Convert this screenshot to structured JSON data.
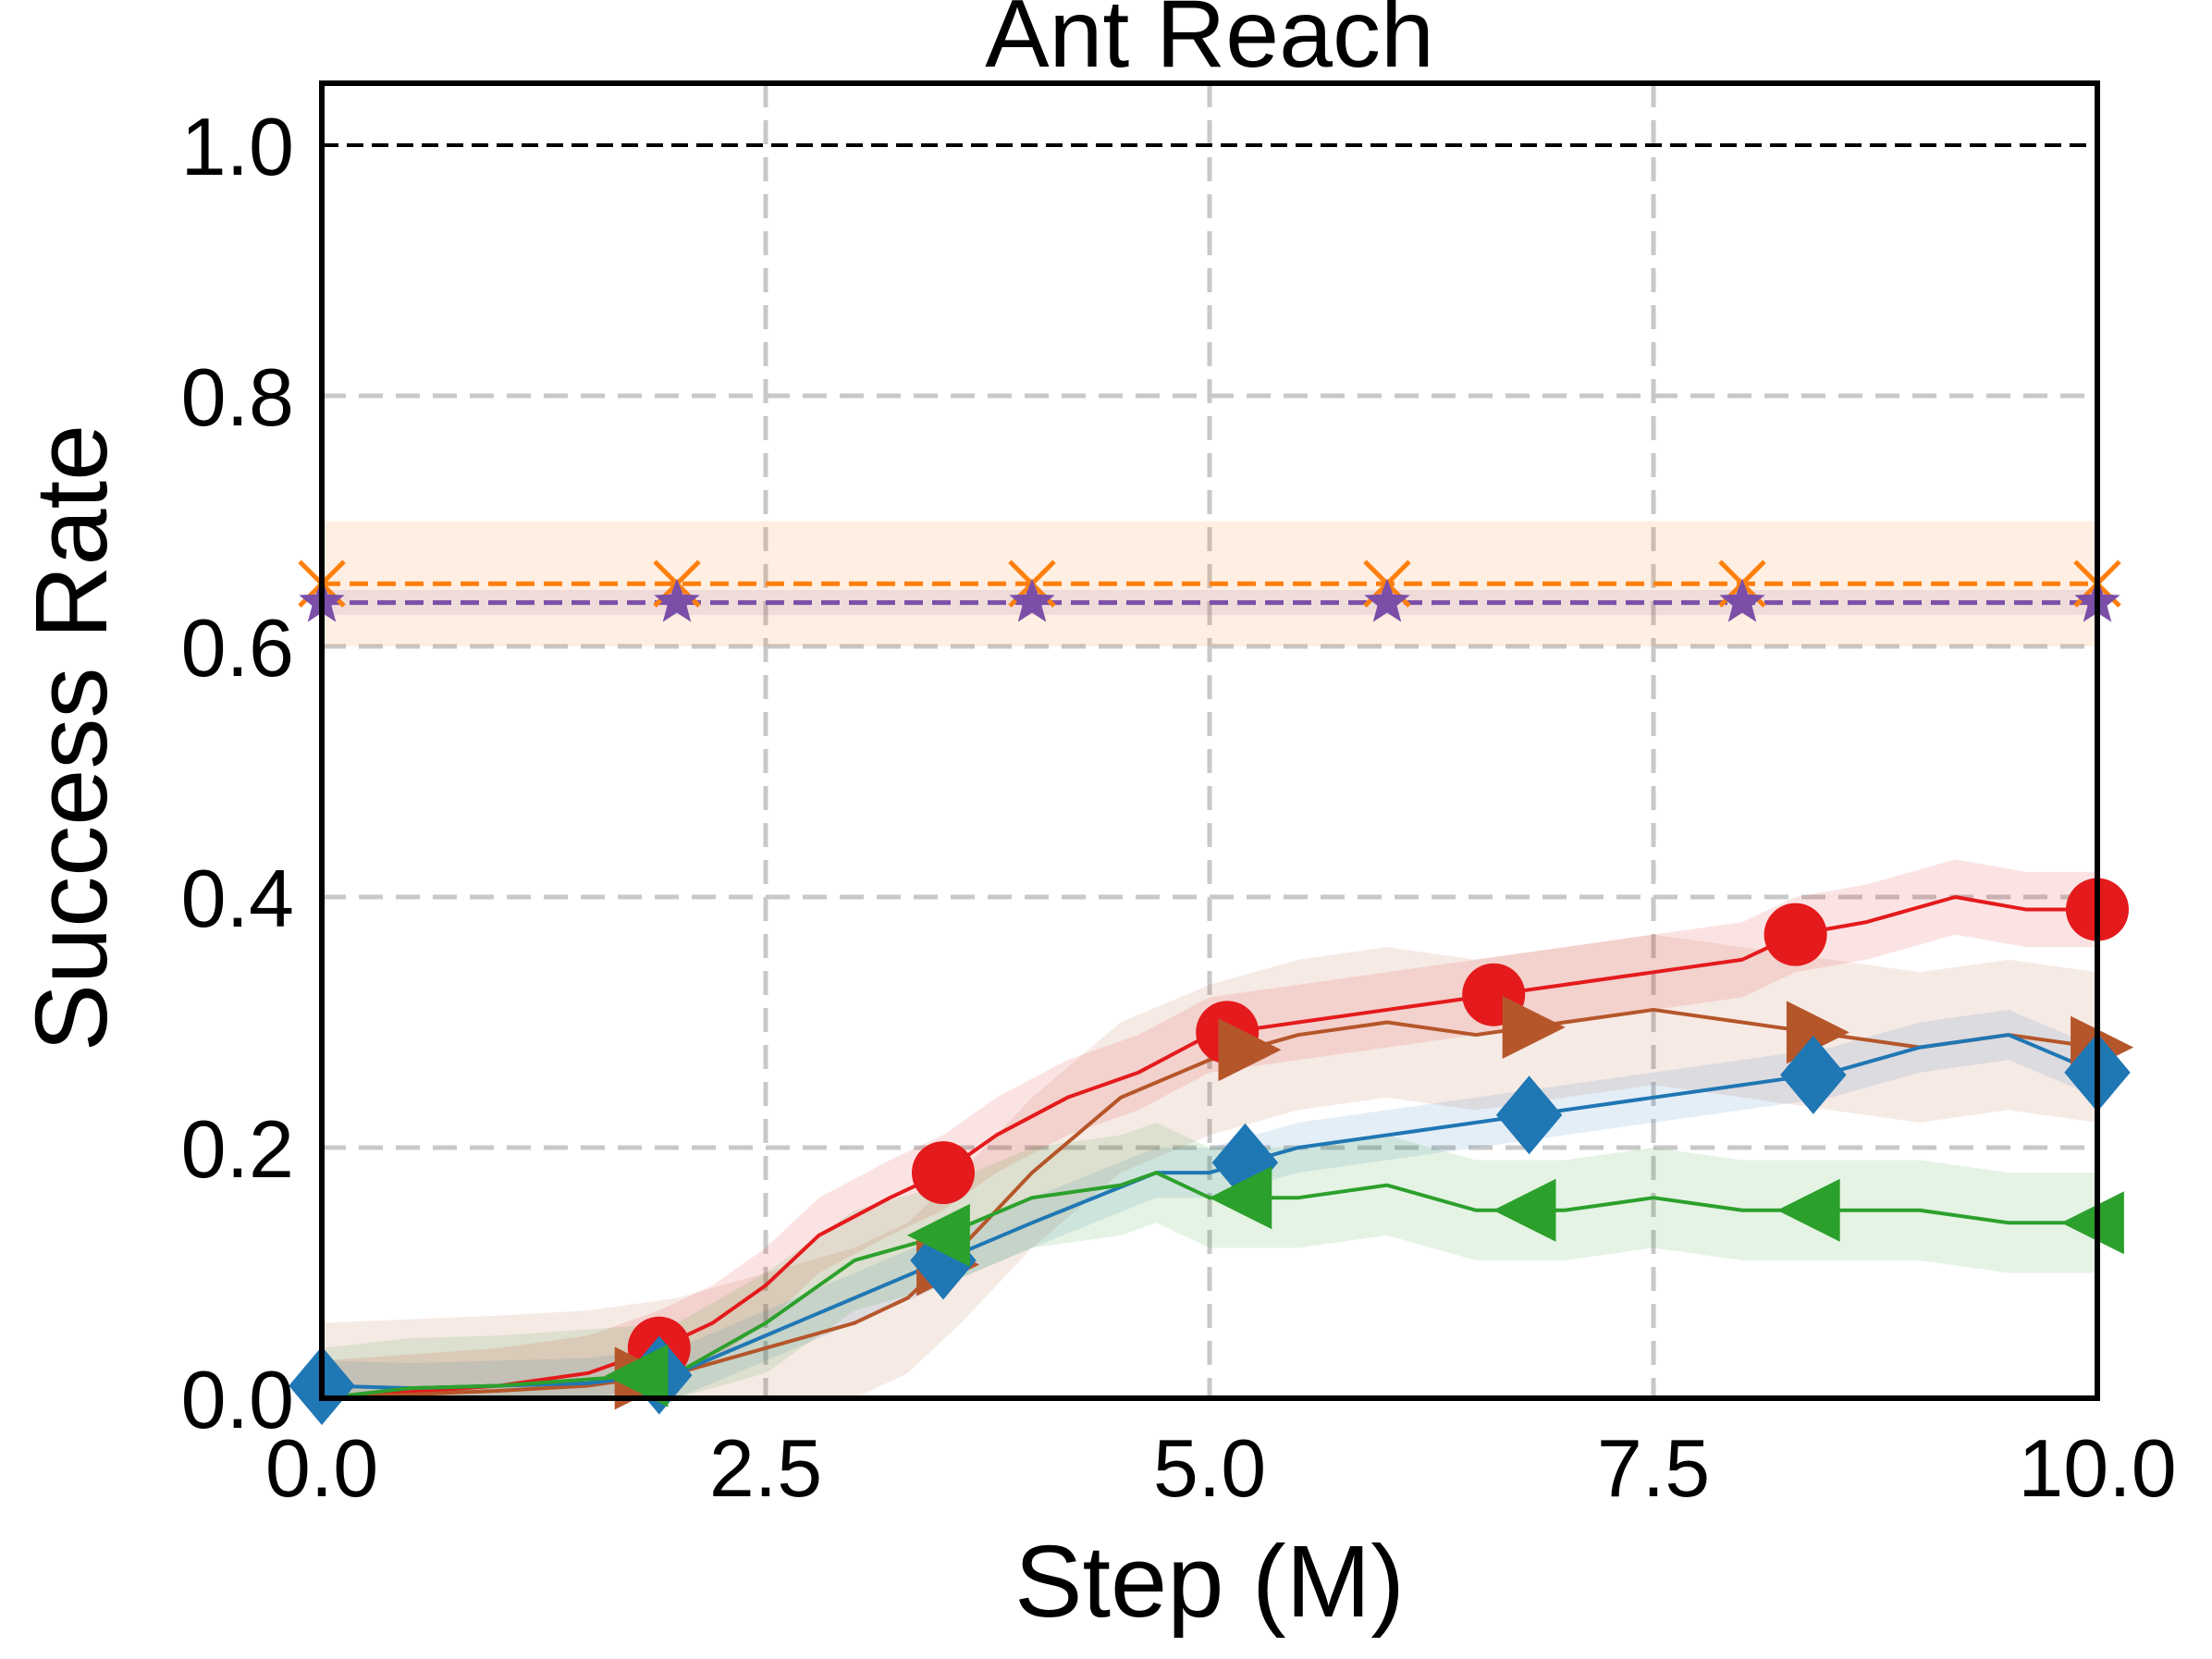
{
  "chart_data": {
    "type": "line",
    "title": "Ant Reach",
    "xlabel": "Step (M)",
    "ylabel": "Success Rate",
    "xlim": [
      0,
      10
    ],
    "ylim": [
      0,
      1.05
    ],
    "xticks": [
      0.0,
      2.5,
      5.0,
      7.5,
      10.0
    ],
    "xtick_labels": [
      "0.0",
      "2.5",
      "5.0",
      "7.5",
      "10.0"
    ],
    "yticks": [
      0.0,
      0.2,
      0.4,
      0.6,
      0.8,
      1.0
    ],
    "ytick_labels": [
      "0.0",
      "0.2",
      "0.4",
      "0.6",
      "0.8",
      "1.0"
    ],
    "grid": true,
    "reference_line": {
      "y": 1.0,
      "color": "#000000",
      "style": "dashed"
    },
    "colors": {
      "red": "#e41a1c",
      "brown": "#b5562a",
      "blue": "#1f77b4",
      "green": "#2ca02c",
      "orange": "#ff7f0e",
      "purple": "#7b4fa8"
    },
    "series": [
      {
        "name": "red",
        "color": "#e41a1c",
        "marker": "circle",
        "x": [
          0.0,
          0.5,
          1.0,
          1.5,
          1.9,
          2.2,
          2.5,
          2.8,
          3.2,
          3.5,
          3.8,
          4.2,
          4.6,
          5.0,
          5.5,
          6.0,
          6.5,
          7.0,
          7.5,
          8.0,
          8.3,
          8.7,
          9.2,
          9.6,
          10.0
        ],
        "y": [
          0.0,
          0.005,
          0.01,
          0.02,
          0.04,
          0.06,
          0.09,
          0.13,
          0.16,
          0.18,
          0.21,
          0.24,
          0.26,
          0.29,
          0.3,
          0.31,
          0.32,
          0.33,
          0.34,
          0.35,
          0.37,
          0.38,
          0.4,
          0.39,
          0.39
        ],
        "band": 0.03,
        "marker_x": [
          1.9,
          3.5,
          5.1,
          6.6,
          8.3,
          10.0
        ]
      },
      {
        "name": "brown",
        "color": "#b5562a",
        "marker": "triangle-right",
        "x": [
          0.0,
          0.5,
          1.0,
          1.5,
          2.0,
          2.5,
          3.0,
          3.3,
          3.6,
          4.0,
          4.5,
          5.0,
          5.5,
          6.0,
          6.5,
          7.0,
          7.5,
          8.0,
          8.5,
          9.0,
          9.5,
          10.0
        ],
        "y": [
          0.0,
          0.003,
          0.006,
          0.01,
          0.02,
          0.04,
          0.06,
          0.08,
          0.12,
          0.18,
          0.24,
          0.27,
          0.29,
          0.3,
          0.29,
          0.3,
          0.31,
          0.3,
          0.29,
          0.28,
          0.29,
          0.28
        ],
        "band": 0.06,
        "marker_x": [
          1.8,
          3.5,
          5.2,
          6.8,
          8.4,
          10.0
        ]
      },
      {
        "name": "blue",
        "color": "#1f77b4",
        "marker": "diamond",
        "x": [
          0.0,
          0.5,
          1.0,
          1.5,
          2.0,
          2.5,
          3.0,
          3.5,
          4.0,
          4.7,
          5.0,
          5.5,
          6.0,
          6.5,
          7.0,
          7.5,
          8.0,
          8.5,
          9.0,
          9.5,
          10.0
        ],
        "y": [
          0.01,
          0.008,
          0.01,
          0.012,
          0.02,
          0.05,
          0.08,
          0.11,
          0.14,
          0.18,
          0.18,
          0.2,
          0.21,
          0.22,
          0.23,
          0.24,
          0.25,
          0.26,
          0.28,
          0.29,
          0.26
        ],
        "band": 0.02,
        "marker_x": [
          0.0,
          1.9,
          3.5,
          5.2,
          6.8,
          8.4,
          10.0
        ]
      },
      {
        "name": "green",
        "color": "#2ca02c",
        "marker": "triangle-left",
        "x": [
          0.0,
          0.5,
          1.0,
          1.5,
          2.0,
          2.5,
          3.0,
          3.5,
          4.0,
          4.5,
          4.7,
          5.0,
          5.5,
          6.0,
          6.5,
          7.0,
          7.5,
          8.0,
          8.5,
          9.0,
          9.5,
          10.0
        ],
        "y": [
          0.0,
          0.008,
          0.01,
          0.015,
          0.02,
          0.06,
          0.11,
          0.13,
          0.16,
          0.17,
          0.18,
          0.16,
          0.16,
          0.17,
          0.15,
          0.15,
          0.16,
          0.15,
          0.15,
          0.15,
          0.14,
          0.14
        ],
        "band": 0.04,
        "marker_x": [
          1.8,
          3.5,
          5.2,
          6.8,
          8.4,
          10.0
        ]
      },
      {
        "name": "orange",
        "color": "#ff7f0e",
        "marker": "x",
        "dashed": true,
        "x": [
          0.0,
          10.0
        ],
        "y": [
          0.65,
          0.65
        ],
        "band": 0.05,
        "marker_x": [
          0.0,
          2.0,
          4.0,
          6.0,
          8.0,
          10.0
        ]
      },
      {
        "name": "purple",
        "color": "#7b4fa8",
        "marker": "star",
        "dashed": true,
        "x": [
          0.0,
          10.0
        ],
        "y": [
          0.635,
          0.635
        ],
        "band": 0.01,
        "marker_x": [
          0.0,
          2.0,
          4.0,
          6.0,
          8.0,
          10.0
        ]
      }
    ]
  }
}
